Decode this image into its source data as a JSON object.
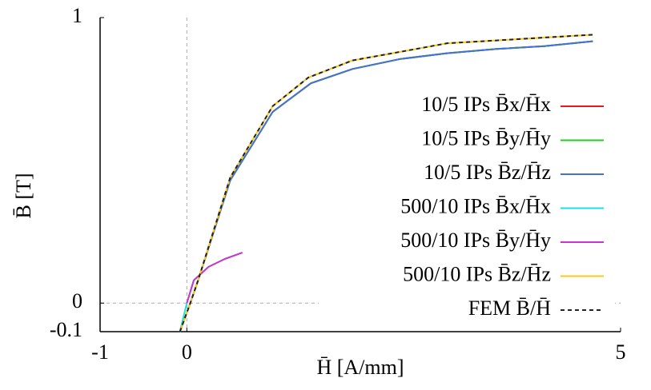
{
  "chart_data": {
    "type": "line",
    "xlabel": "H̄ [A/mm]",
    "ylabel": "B̄ [T]",
    "xlim": [
      -1,
      5
    ],
    "ylim": [
      -0.1,
      1
    ],
    "xticks": [
      -1,
      0,
      5
    ],
    "yticks": [
      -0.1,
      0,
      1
    ],
    "zero_lines": true,
    "legend": "right",
    "series": [
      {
        "name": "10/5 IPs B̄x/H̄x",
        "color": "#e41a1c",
        "linestyle": "solid",
        "x": [
          -0.08,
          0.04,
          0.13,
          0.5,
          0.99,
          1.43,
          1.91,
          2.46,
          3.0,
          3.57,
          4.12,
          4.68
        ],
        "values": [
          -0.1,
          0,
          0.08,
          0.43,
          0.67,
          0.77,
          0.82,
          0.855,
          0.875,
          0.89,
          0.9,
          0.917
        ]
      },
      {
        "name": "10/5 IPs B̄y/H̄y",
        "color": "#22cc22",
        "linestyle": "solid",
        "x": [
          -0.08,
          0.04,
          0.13,
          0.5,
          0.99,
          1.43,
          1.91,
          2.46,
          3.0,
          3.57,
          4.12,
          4.68
        ],
        "values": [
          -0.1,
          0,
          0.08,
          0.43,
          0.67,
          0.77,
          0.82,
          0.855,
          0.875,
          0.89,
          0.9,
          0.917
        ]
      },
      {
        "name": "10/5 IPs B̄z/H̄z",
        "color": "#4472d4",
        "linestyle": "solid",
        "x": [
          -0.08,
          0.04,
          0.13,
          0.5,
          0.99,
          1.43,
          1.91,
          2.46,
          3.0,
          3.57,
          4.12,
          4.68
        ],
        "values": [
          -0.1,
          0,
          0.08,
          0.43,
          0.67,
          0.77,
          0.82,
          0.855,
          0.875,
          0.89,
          0.9,
          0.917
        ]
      },
      {
        "name": "500/10 IPs B̄x/H̄x",
        "color": "#22dddd",
        "linestyle": "solid",
        "x": [
          -0.08,
          0,
          0.08,
          0.25,
          0.44,
          0.64
        ],
        "values": [
          -0.1,
          0,
          0.08,
          0.127,
          0.155,
          0.177
        ]
      },
      {
        "name": "500/10 IPs B̄y/H̄y",
        "color": "#cc33cc",
        "linestyle": "solid",
        "x": [
          0,
          0.08,
          0.25,
          0.44,
          0.64
        ],
        "values": [
          0,
          0.08,
          0.127,
          0.155,
          0.177
        ]
      },
      {
        "name": "500/10 IPs B̄z/H̄z",
        "color": "#ffc61a",
        "linestyle": "solid",
        "x": [
          -0.08,
          0.04,
          0.13,
          0.5,
          0.99,
          1.4,
          1.91,
          2.46,
          3.0,
          3.57,
          4.12,
          4.68
        ],
        "values": [
          -0.1,
          0,
          0.08,
          0.44,
          0.69,
          0.79,
          0.85,
          0.88,
          0.91,
          0.92,
          0.93,
          0.94
        ]
      },
      {
        "name": "FEM B̄/H̄",
        "color": "#222222",
        "linestyle": "dashed",
        "x": [
          -0.08,
          0.04,
          0.13,
          0.5,
          0.99,
          1.4,
          1.91,
          2.46,
          3.0,
          3.57,
          4.12,
          4.68
        ],
        "values": [
          -0.1,
          0,
          0.08,
          0.44,
          0.69,
          0.79,
          0.85,
          0.88,
          0.91,
          0.92,
          0.93,
          0.94
        ]
      }
    ]
  }
}
